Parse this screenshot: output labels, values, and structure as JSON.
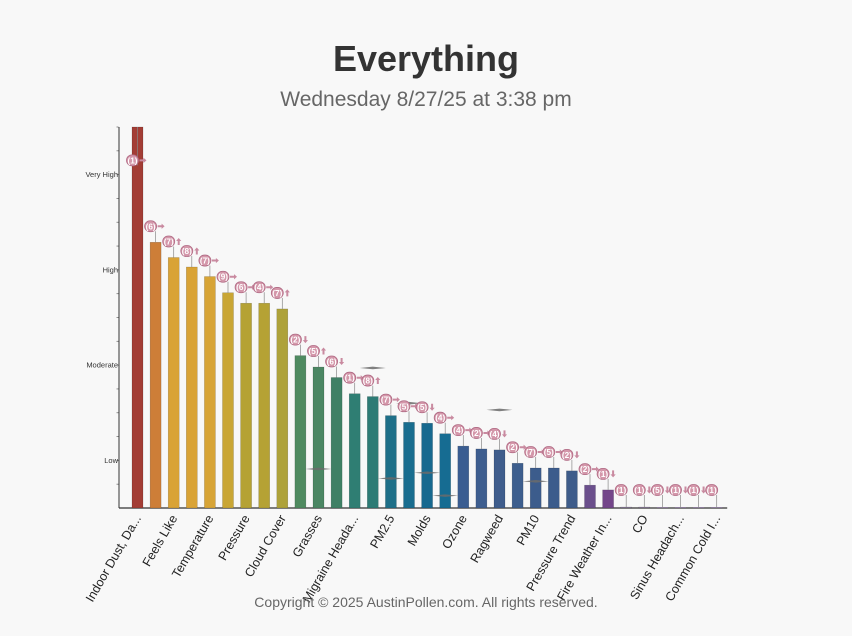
{
  "title": "Everything",
  "subtitle": "Wednesday 8/27/25 at 3:38 pm",
  "footer": "Copyright © 2025 AustinPollen.com.  All rights reserved.",
  "colors": {
    "bubble_fill": "#d497aa",
    "bubble_stroke": "#b06a84",
    "arrow": "#c98aa0",
    "axis": "#333333",
    "whisker": "#888888"
  },
  "chart_data": {
    "type": "bar",
    "y_scale": "categorical level (0 = none, 1 = Low, 2 = Moderate, 3 = High, 4 = Very High)",
    "y_ticks": [
      {
        "value": 0.5,
        "label": "Low"
      },
      {
        "value": 1.5,
        "label": "Moderate"
      },
      {
        "value": 2.5,
        "label": "High"
      },
      {
        "value": 3.5,
        "label": "Very High"
      }
    ],
    "ylim": [
      0,
      4
    ],
    "grid": false,
    "legend": "none",
    "bars": [
      {
        "label": "Indoor Dust, Da...",
        "value": 4.0,
        "color": "#a33d35",
        "badge": "1",
        "trend": "right"
      },
      {
        "label": "",
        "value": 2.79,
        "color": "#cd7e38",
        "badge": "6",
        "trend": "right"
      },
      {
        "label": "Feels Like",
        "value": 2.63,
        "color": "#d9a336",
        "badge": "7",
        "trend": "up"
      },
      {
        "label": "",
        "value": 2.53,
        "color": "#d9a336",
        "badge": "8",
        "trend": "up"
      },
      {
        "label": "Temperature",
        "value": 2.43,
        "color": "#d7a436",
        "badge": "7",
        "trend": "right"
      },
      {
        "label": "",
        "value": 2.26,
        "color": "#c9a634",
        "badge": "9",
        "trend": "right"
      },
      {
        "label": "Pressure",
        "value": 2.15,
        "color": "#b5a234",
        "badge": "6",
        "trend": "right"
      },
      {
        "label": "",
        "value": 2.15,
        "color": "#b5a234",
        "badge": "4",
        "trend": "right"
      },
      {
        "label": "Cloud Cover",
        "value": 2.09,
        "color": "#aea23a",
        "badge": "7",
        "trend": "up"
      },
      {
        "label": "",
        "value": 1.6,
        "color": "#4f8a60",
        "badge": "2",
        "trend": "down"
      },
      {
        "label": "Grasses",
        "value": 1.48,
        "color": "#4b8663",
        "badge": "5",
        "trend": "up",
        "whisker": 0.41
      },
      {
        "label": "",
        "value": 1.37,
        "color": "#3f8065",
        "badge": "6",
        "trend": "down"
      },
      {
        "label": "Migraine Heada...",
        "value": 1.2,
        "color": "#2f7e73",
        "badge": "1",
        "trend": "right"
      },
      {
        "label": "",
        "value": 1.17,
        "color": "#2d7b75",
        "badge": "8",
        "trend": "up",
        "whisker": 1.47
      },
      {
        "label": "PM2.5",
        "value": 0.97,
        "color": "#1e6f88",
        "badge": "7",
        "trend": "right",
        "whisker": 0.31
      },
      {
        "label": "",
        "value": 0.9,
        "color": "#196d8f",
        "badge": "5",
        "trend": "right",
        "whisker": 1.1
      },
      {
        "label": "Molds",
        "value": 0.89,
        "color": "#17698f",
        "badge": "5",
        "trend": "down",
        "whisker": 0.37
      },
      {
        "label": "",
        "value": 0.78,
        "color": "#166c92",
        "badge": "4",
        "trend": "right",
        "whisker": 0.13
      },
      {
        "label": "Ozone",
        "value": 0.65,
        "color": "#3a5d91",
        "badge": "4",
        "trend": "right"
      },
      {
        "label": "",
        "value": 0.62,
        "color": "#3e5e8f",
        "badge": "2",
        "trend": "right"
      },
      {
        "label": "Ragweed",
        "value": 0.61,
        "color": "#3f5d8c",
        "badge": "4",
        "trend": "down",
        "whisker": 1.03
      },
      {
        "label": "",
        "value": 0.47,
        "color": "#3d5e8e",
        "badge": "2",
        "trend": "right"
      },
      {
        "label": "PM10",
        "value": 0.42,
        "color": "#3c5c8c",
        "badge": "7",
        "trend": "right",
        "whisker": 0.28
      },
      {
        "label": "",
        "value": 0.42,
        "color": "#3c5c8c",
        "badge": "5",
        "trend": "right"
      },
      {
        "label": "Pressure Trend",
        "value": 0.39,
        "color": "#3e5c8a",
        "badge": "2",
        "trend": "down"
      },
      {
        "label": "",
        "value": 0.24,
        "color": "#6b4f8c",
        "badge": "2",
        "trend": "right"
      },
      {
        "label": "Fire Weather In...",
        "value": 0.19,
        "color": "#74468a",
        "badge": "1",
        "trend": "down"
      },
      {
        "label": "",
        "value": 0.01,
        "color": "#8a7a99",
        "badge": "1",
        "trend": "none"
      },
      {
        "label": "CO",
        "value": 0.01,
        "color": "#8a7a99",
        "badge": "1",
        "trend": "down"
      },
      {
        "label": "",
        "value": 0.0,
        "color": "#8a7a99",
        "badge": "5",
        "trend": "down"
      },
      {
        "label": "Sinus Headach...",
        "value": 0.0,
        "color": "#8a7a99",
        "badge": "1",
        "trend": "down"
      },
      {
        "label": "",
        "value": 0.0,
        "color": "#8a7a99",
        "badge": "1",
        "trend": "down"
      },
      {
        "label": "Common Cold I...",
        "value": 0.0,
        "color": "#8a7a99",
        "badge": "1",
        "trend": "none"
      }
    ]
  }
}
